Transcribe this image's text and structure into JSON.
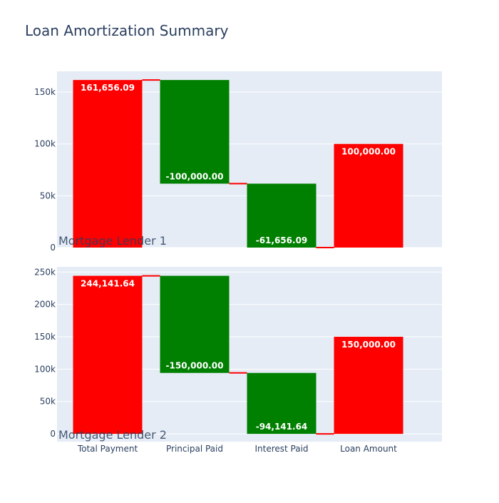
{
  "title": "Loan Amortization Summary",
  "colors": {
    "increase": "#ff0000",
    "decrease": "#008000",
    "connector": "#ff0000",
    "plot_bg": "#e5ecf6",
    "grid": "#ffffff"
  },
  "chart_data": [
    {
      "type": "waterfall",
      "title": "Mortgage Lender 1",
      "categories": [
        "Total Payment",
        "Principal Paid",
        "Interest Paid",
        "Loan Amount"
      ],
      "values": [
        161656.09,
        -100000.0,
        -61656.09,
        100000.0
      ],
      "measure": [
        "relative",
        "relative",
        "relative",
        "absolute"
      ],
      "labels": [
        "161,656.09",
        "-100,000.00",
        "-61,656.09",
        "100,000.00"
      ],
      "ylim": [
        0,
        170000
      ],
      "yticks": [
        0,
        50000,
        100000,
        150000
      ],
      "ytick_labels": [
        "0",
        "50k",
        "100k",
        "150k"
      ],
      "grid": true
    },
    {
      "type": "waterfall",
      "title": "Mortgage Lender 2",
      "categories": [
        "Total Payment",
        "Principal Paid",
        "Interest Paid",
        "Loan Amount"
      ],
      "values": [
        244141.64,
        -150000.0,
        -94141.64,
        150000.0
      ],
      "measure": [
        "relative",
        "relative",
        "relative",
        "absolute"
      ],
      "labels": [
        "244,141.64",
        "-150,000.00",
        "-94,141.64",
        "150,000.00"
      ],
      "ylim": [
        -12000,
        258000
      ],
      "yticks": [
        0,
        50000,
        100000,
        150000,
        200000,
        250000
      ],
      "ytick_labels": [
        "0",
        "50k",
        "100k",
        "150k",
        "200k",
        "250k"
      ],
      "grid": true
    }
  ]
}
